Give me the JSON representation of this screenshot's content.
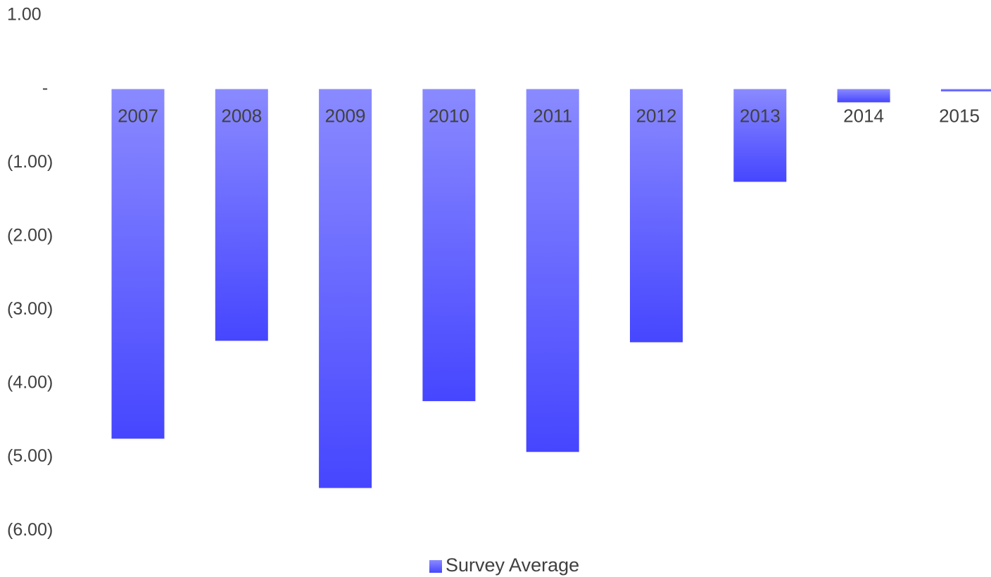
{
  "chart_data": {
    "type": "bar",
    "categories": [
      "2007",
      "2008",
      "2009",
      "2010",
      "2011",
      "2012",
      "2013",
      "2014",
      "2015"
    ],
    "series": [
      {
        "name": "Survey Average",
        "values": [
          -4.75,
          -3.42,
          -5.42,
          -4.24,
          -4.93,
          -3.44,
          -1.26,
          -0.18,
          -0.03
        ]
      }
    ],
    "ylim": [
      -6,
      1
    ],
    "ytick_labels": [
      "1.00",
      "-",
      "(1.00)",
      "(2.00)",
      "(3.00)",
      "(4.00)",
      "(5.00)",
      "(6.00)"
    ],
    "grid": false,
    "legend": "bottom",
    "colors": {
      "bar_light": "#8a8aff",
      "bar_dark": "#4646ff",
      "text": "#404040"
    }
  }
}
